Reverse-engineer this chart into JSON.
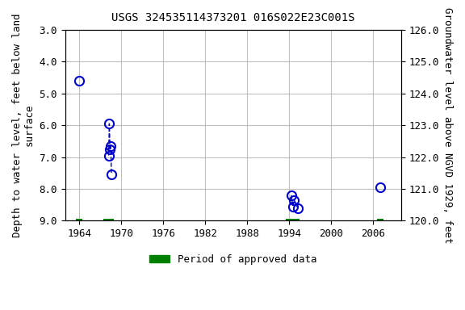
{
  "title": "USGS 324535114373201 016S022E23C001S",
  "ylabel_left": "Depth to water level, feet below land\nsurface",
  "ylabel_right": "Groundwater level above NGVD 1929, feet",
  "ylim_left": [
    9.0,
    3.0
  ],
  "ylim_right": [
    120.0,
    126.0
  ],
  "xlim": [
    1962,
    2010
  ],
  "xticks": [
    1964,
    1970,
    1976,
    1982,
    1988,
    1994,
    2000,
    2006
  ],
  "yticks_left": [
    3.0,
    4.0,
    5.0,
    6.0,
    7.0,
    8.0,
    9.0
  ],
  "yticks_right": [
    120.0,
    121.0,
    122.0,
    123.0,
    124.0,
    125.0,
    126.0
  ],
  "data_points": [
    {
      "year": 1964.0,
      "depth": 4.6
    },
    {
      "year": 1968.2,
      "depth": 6.95
    },
    {
      "year": 1968.3,
      "depth": 5.95
    },
    {
      "year": 1968.4,
      "depth": 6.75
    },
    {
      "year": 1968.5,
      "depth": 6.65
    },
    {
      "year": 1968.6,
      "depth": 7.55
    },
    {
      "year": 1994.3,
      "depth": 8.2
    },
    {
      "year": 1994.5,
      "depth": 8.55
    },
    {
      "year": 1994.7,
      "depth": 8.35
    },
    {
      "year": 1995.2,
      "depth": 8.6
    },
    {
      "year": 2007.0,
      "depth": 7.95
    }
  ],
  "connected_groups": [
    [
      1968.2,
      1968.3,
      1968.4,
      1968.5,
      1968.6
    ],
    [
      1994.3,
      1994.5,
      1994.7,
      1995.2
    ]
  ],
  "approved_periods": [
    {
      "start": 1963.5,
      "end": 1964.5
    },
    {
      "start": 1967.5,
      "end": 1969.0
    },
    {
      "start": 1993.5,
      "end": 1995.5
    },
    {
      "start": 2006.5,
      "end": 2007.5
    }
  ],
  "point_color": "#0000cc",
  "line_color": "#0000cc",
  "approved_color": "#008000",
  "background_color": "#ffffff",
  "grid_color": "#c0c0c0",
  "legend_label": "Period of approved data"
}
